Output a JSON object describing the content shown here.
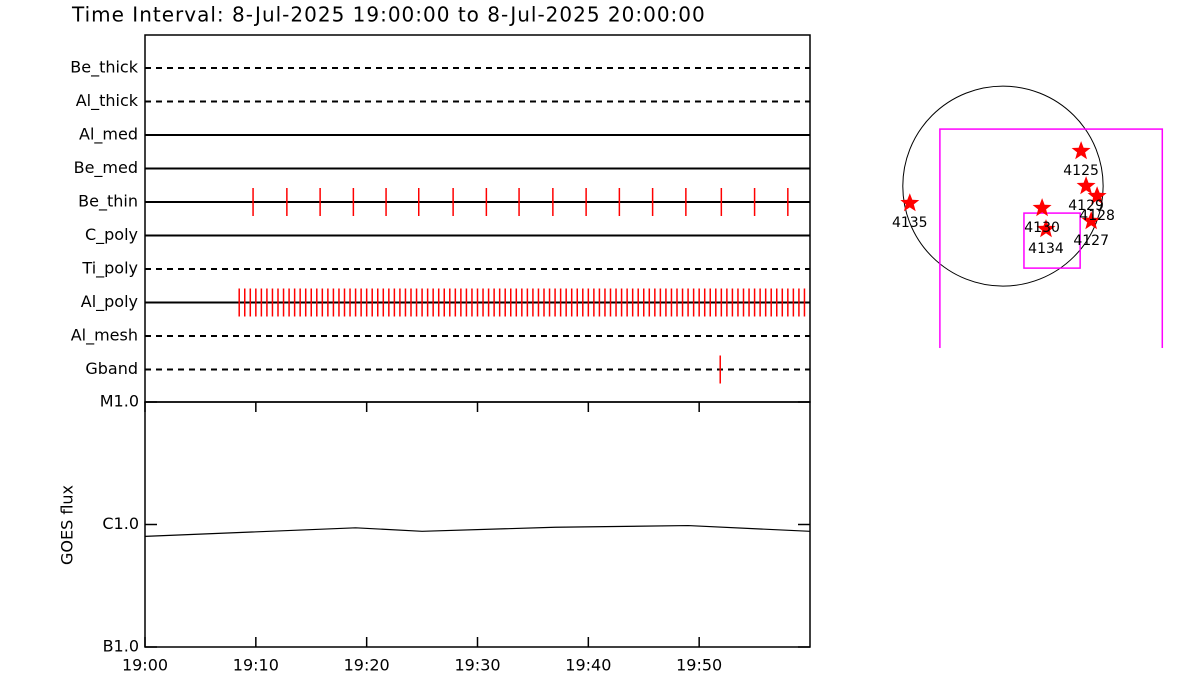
{
  "chart_data": [
    {
      "type": "timeline",
      "title": "Time Interval:  8-Jul-2025 19:00:00 to  8-Jul-2025 20:00:00",
      "categories": [
        "Be_thick",
        "Al_thick",
        "Al_med",
        "Be_med",
        "Be_thin",
        "C_poly",
        "Ti_poly",
        "Al_poly",
        "Al_mesh",
        "Gband"
      ],
      "line_styles": [
        "dashed",
        "dashed",
        "solid",
        "solid",
        "solid",
        "solid",
        "dashed",
        "solid",
        "dashed",
        "dashed"
      ],
      "events": [
        [],
        [],
        [],
        [],
        [
          9.75,
          12.8,
          15.8,
          18.8,
          21.75,
          24.7,
          27.8,
          30.8,
          33.75,
          36.8,
          39.8,
          42.8,
          45.8,
          48.8,
          52,
          55,
          58
        ],
        [],
        [],
        [
          8.5,
          9,
          9.5,
          10,
          10.5,
          11,
          11.5,
          12,
          12.5,
          13,
          13.5,
          14,
          14.5,
          15,
          15.5,
          16,
          16.5,
          17,
          17.5,
          18,
          18.5,
          19,
          19.5,
          20,
          20.5,
          21,
          21.5,
          22,
          22.5,
          23,
          23.5,
          24,
          24.5,
          25,
          25.5,
          26,
          26.5,
          27,
          27.5,
          28,
          28.5,
          29,
          29.5,
          30,
          30.5,
          31,
          31.5,
          32,
          32.5,
          33,
          33.5,
          34,
          34.5,
          35,
          35.5,
          36,
          36.5,
          37,
          37.5,
          38,
          38.5,
          39,
          39.5,
          40,
          40.5,
          41,
          41.5,
          42,
          42.5,
          43,
          43.5,
          44,
          44.5,
          45,
          45.5,
          46,
          46.5,
          47,
          47.5,
          48,
          48.5,
          49,
          49.5,
          50,
          50.5,
          51,
          51.5,
          52,
          52.5,
          53,
          53.5,
          54,
          54.5,
          55,
          55.5,
          56,
          56.5,
          57,
          57.5,
          58,
          58.5,
          59,
          59.5
        ],
        [],
        [
          51.9
        ]
      ],
      "color": "#ff0000",
      "xlim": [
        0,
        60
      ]
    },
    {
      "type": "line",
      "ylabel": "GOES flux",
      "x": [
        0,
        19,
        25,
        37,
        49,
        60
      ],
      "values": [
        8e-07,
        9.4e-07,
        8.8e-07,
        9.5e-07,
        9.8e-07,
        8.8e-07
      ],
      "color": "#000000",
      "xlim": [
        0,
        60
      ],
      "xticks": [
        {
          "value": 0,
          "label": "19:00"
        },
        {
          "value": 10,
          "label": "19:10"
        },
        {
          "value": 20,
          "label": "19:20"
        },
        {
          "value": 30,
          "label": "19:30"
        },
        {
          "value": 40,
          "label": "19:40"
        },
        {
          "value": 50,
          "label": "19:50"
        }
      ],
      "ylim": [
        1e-07,
        1e-05
      ],
      "log_y": true,
      "yticks": [
        {
          "value": 1e-07,
          "label": "B1.0"
        },
        {
          "value": 1e-06,
          "label": "C1.0"
        },
        {
          "value": 1e-05,
          "label": "M1.0"
        }
      ]
    },
    {
      "type": "map",
      "labels": [
        "4135",
        "4125",
        "4129",
        "4128",
        "4130",
        "4134",
        "4127"
      ],
      "x": [
        -879,
        737,
        784,
        888,
        369,
        406,
        832
      ],
      "y": [
        -161,
        331,
        0,
        -95,
        -208,
        -406,
        -331
      ],
      "color": "#ff0000",
      "disk_radius": 945,
      "fov": [
        {
          "xlim": [
            -595,
            1503
          ],
          "ylim": [
            -1600,
            539
          ]
        },
        {
          "xlim": [
            198,
            728
          ],
          "ylim": [
            -775,
            -255
          ]
        }
      ],
      "fov_color": "#ff00ff",
      "xlim": [
        -1160,
        1670
      ],
      "ylim": [
        -1530,
        1570
      ]
    }
  ]
}
